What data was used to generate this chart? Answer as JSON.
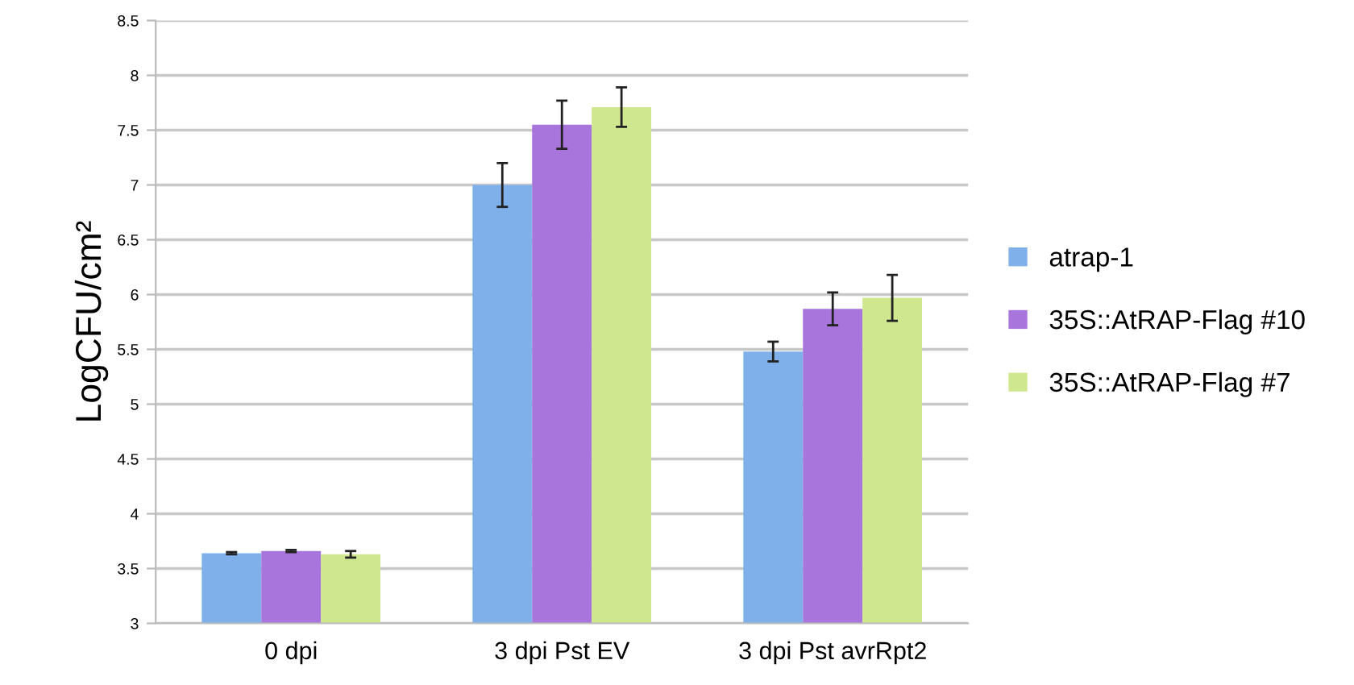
{
  "chart_data": {
    "type": "bar",
    "ylabel": "LogCFU/cm²",
    "categories": [
      "0 dpi",
      "3 dpi Pst EV",
      "3 dpi Pst avrRpt2"
    ],
    "series": [
      {
        "name": "atrap-1",
        "color": "#7fb0ea",
        "values": [
          3.64,
          7.0,
          5.48
        ],
        "errors": [
          0.01,
          0.2,
          0.09
        ]
      },
      {
        "name": "35S::AtRAP-Flag #10",
        "color": "#a875dc",
        "values": [
          3.66,
          7.55,
          5.87
        ],
        "errors": [
          0.01,
          0.22,
          0.15
        ]
      },
      {
        "name": "35S::AtRAP-Flag #7",
        "color": "#cfe890",
        "values": [
          3.63,
          7.71,
          5.97
        ],
        "errors": [
          0.03,
          0.18,
          0.21
        ]
      }
    ],
    "ylim": [
      3,
      8.5
    ],
    "yticks": [
      3,
      3.5,
      4,
      4.5,
      5,
      5.5,
      6,
      6.5,
      7,
      7.5,
      8,
      8.5
    ],
    "grid": "y",
    "legend": "right"
  }
}
